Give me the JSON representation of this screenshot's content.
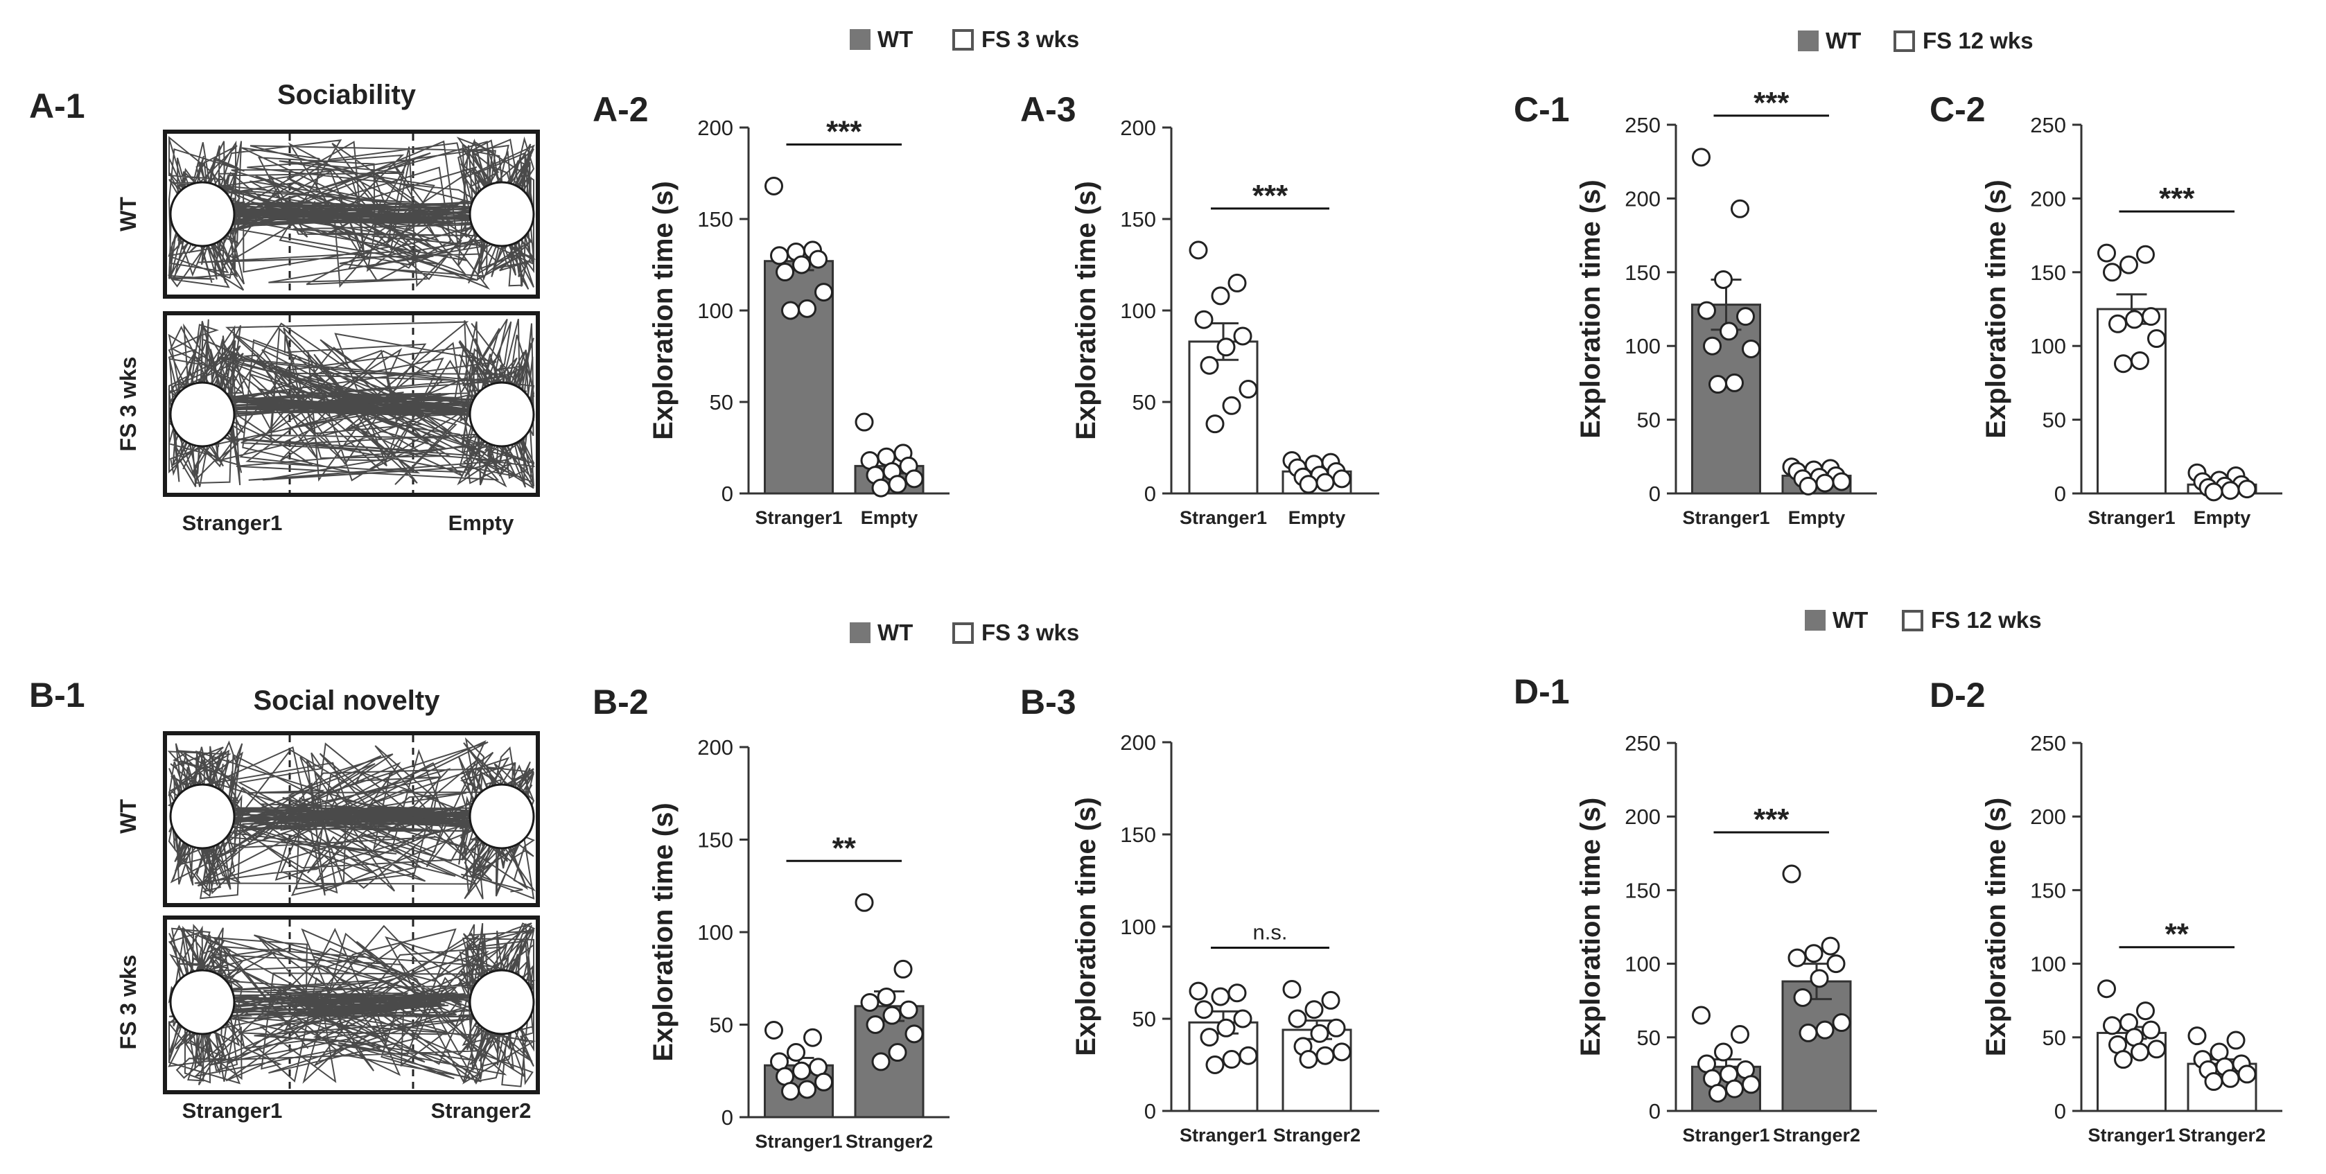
{
  "figure": {
    "panels": {
      "a1": {
        "label": "A-1",
        "title": "Sociability",
        "row1": "WT",
        "row2": "FS 3 wks",
        "left": "Stranger1",
        "right": "Empty"
      },
      "b1": {
        "label": "B-1",
        "title": "Social  novelty",
        "row1": "WT",
        "row2": "FS 3 wks",
        "left": "Stranger1",
        "right": "Stranger2"
      }
    },
    "legends": [
      {
        "wt": "WT",
        "fs": "FS 3 wks"
      },
      {
        "wt": "WT",
        "fs": "FS 12 wks"
      },
      {
        "wt": "WT",
        "fs": "FS 3 wks"
      },
      {
        "wt": "WT",
        "fs": "FS 12 wks"
      }
    ]
  },
  "colors": {
    "wt_fill": "#777777",
    "fs_fill": "#ffffff",
    "stroke": "#333333",
    "track": "#4a4a4a"
  },
  "chart_data": [
    {
      "id": "A-2",
      "label": "A-2",
      "type": "bar",
      "fill": "wt",
      "ylabel": "Exploration time (s)",
      "ylim": [
        0,
        200
      ],
      "yticks": [
        0,
        50,
        100,
        150,
        200
      ],
      "categories": [
        "Stranger1",
        "Empty"
      ],
      "values": [
        127,
        15
      ],
      "sem": [
        5,
        4
      ],
      "significance": "***",
      "points": [
        [
          168,
          133,
          132,
          130,
          128,
          125,
          121,
          110,
          101,
          100
        ],
        [
          39,
          22,
          20,
          18,
          15,
          12,
          10,
          8,
          5,
          3
        ]
      ]
    },
    {
      "id": "A-3",
      "label": "A-3",
      "type": "bar",
      "fill": "fs",
      "ylabel": "Exploration time (s)",
      "ylim": [
        0,
        200
      ],
      "yticks": [
        0,
        50,
        100,
        150,
        200
      ],
      "categories": [
        "Stranger1",
        "Empty"
      ],
      "values": [
        83,
        12
      ],
      "sem": [
        10,
        2
      ],
      "significance": "***",
      "points": [
        [
          133,
          115,
          108,
          95,
          86,
          80,
          70,
          57,
          48,
          38
        ],
        [
          18,
          17,
          16,
          14,
          12,
          10,
          9,
          8,
          6,
          5
        ]
      ]
    },
    {
      "id": "C-1",
      "label": "C-1",
      "type": "bar",
      "fill": "wt",
      "ylabel": "Exploration time (s)",
      "ylim": [
        0,
        250
      ],
      "yticks": [
        0,
        50,
        100,
        150,
        200,
        250
      ],
      "categories": [
        "Stranger1",
        "Empty"
      ],
      "values": [
        128,
        12
      ],
      "sem": [
        17,
        2
      ],
      "significance": "***",
      "points": [
        [
          228,
          193,
          145,
          124,
          120,
          110,
          100,
          98,
          75,
          74
        ],
        [
          18,
          17,
          16,
          15,
          12,
          11,
          10,
          8,
          7,
          5
        ]
      ]
    },
    {
      "id": "C-2",
      "label": "C-2",
      "type": "bar",
      "fill": "fs",
      "ylabel": "Exploration time (s)",
      "ylim": [
        0,
        250
      ],
      "yticks": [
        0,
        50,
        100,
        150,
        200,
        250
      ],
      "categories": [
        "Stranger1",
        "Empty"
      ],
      "values": [
        125,
        6
      ],
      "sem": [
        10,
        2
      ],
      "significance": "***",
      "points": [
        [
          163,
          162,
          155,
          150,
          120,
          118,
          115,
          105,
          90,
          88
        ],
        [
          14,
          12,
          9,
          8,
          6,
          5,
          4,
          3,
          2,
          1
        ]
      ]
    },
    {
      "id": "B-2",
      "label": "B-2",
      "type": "bar",
      "fill": "wt",
      "ylabel": "Exploration time (s)",
      "ylim": [
        0,
        200
      ],
      "yticks": [
        0,
        50,
        100,
        150,
        200
      ],
      "categories": [
        "Stranger1",
        "Stranger2"
      ],
      "values": [
        28,
        60
      ],
      "sem": [
        4,
        8
      ],
      "significance": "**",
      "points": [
        [
          47,
          43,
          35,
          30,
          27,
          25,
          22,
          19,
          15,
          14
        ],
        [
          116,
          80,
          65,
          62,
          58,
          55,
          50,
          45,
          35,
          30
        ]
      ]
    },
    {
      "id": "B-3",
      "label": "B-3",
      "type": "bar",
      "fill": "fs",
      "ylabel": "Exploration time (s)",
      "ylim": [
        0,
        200
      ],
      "yticks": [
        0,
        50,
        100,
        150,
        200
      ],
      "categories": [
        "Stranger1",
        "Stranger2"
      ],
      "values": [
        48,
        44
      ],
      "sem": [
        6,
        5
      ],
      "significance": "n.s.",
      "points": [
        [
          65,
          64,
          62,
          55,
          50,
          45,
          40,
          30,
          28,
          25
        ],
        [
          66,
          60,
          55,
          50,
          45,
          42,
          35,
          32,
          30,
          28
        ]
      ]
    },
    {
      "id": "D-1",
      "label": "D-1",
      "type": "bar",
      "fill": "wt",
      "ylabel": "Exploration time (s)",
      "ylim": [
        0,
        250
      ],
      "yticks": [
        0,
        50,
        100,
        150,
        200,
        250
      ],
      "categories": [
        "Stranger1",
        "Stranger2"
      ],
      "values": [
        30,
        88
      ],
      "sem": [
        5,
        12
      ],
      "significance": "***",
      "points": [
        [
          65,
          52,
          40,
          32,
          28,
          25,
          22,
          18,
          15,
          12
        ],
        [
          161,
          112,
          107,
          104,
          100,
          90,
          77,
          60,
          55,
          53
        ]
      ]
    },
    {
      "id": "D-2",
      "label": "D-2",
      "type": "bar",
      "fill": "fs",
      "ylabel": "Exploration time (s)",
      "ylim": [
        0,
        250
      ],
      "yticks": [
        0,
        50,
        100,
        150,
        200,
        250
      ],
      "categories": [
        "Stranger1",
        "Stranger2"
      ],
      "values": [
        53,
        32
      ],
      "sem": [
        4,
        3
      ],
      "significance": "**",
      "points": [
        [
          83,
          68,
          60,
          58,
          55,
          50,
          45,
          42,
          40,
          35
        ],
        [
          51,
          48,
          40,
          35,
          32,
          30,
          28,
          25,
          22,
          20
        ]
      ]
    }
  ]
}
